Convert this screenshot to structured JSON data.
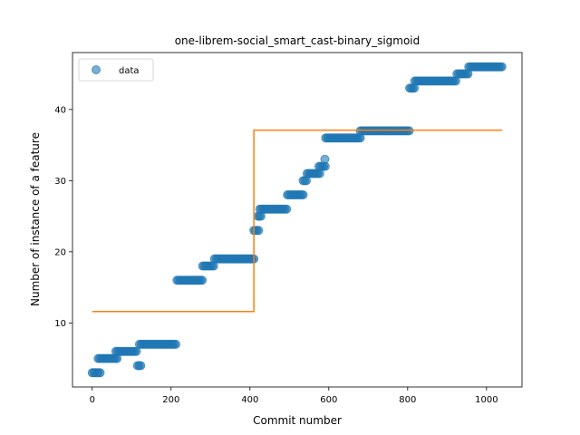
{
  "chart_data": {
    "type": "scatter",
    "title": "one-librem-social_smart_cast-binary_sigmoid",
    "xlabel": "Commit number",
    "ylabel": "Number of instance of a feature",
    "xlim": [
      -50,
      1090
    ],
    "ylim": [
      1,
      48
    ],
    "xticks": [
      0,
      200,
      400,
      600,
      800,
      1000
    ],
    "yticks": [
      10,
      20,
      30,
      40
    ],
    "grid": false,
    "legend": {
      "placement": "top-left",
      "entries": [
        "data"
      ]
    },
    "colors": {
      "scatter": "#1f77b4",
      "fit": "#ff7f0e"
    },
    "series": [
      {
        "name": "data",
        "kind": "scatter",
        "segments": [
          {
            "x0": 0,
            "x1": 20,
            "y": 3
          },
          {
            "x0": 15,
            "x1": 65,
            "y": 5
          },
          {
            "x0": 60,
            "x1": 115,
            "y": 6
          },
          {
            "x0": 115,
            "x1": 125,
            "y": 4
          },
          {
            "x0": 120,
            "x1": 215,
            "y": 7
          },
          {
            "x0": 215,
            "x1": 280,
            "y": 16
          },
          {
            "x0": 280,
            "x1": 310,
            "y": 18
          },
          {
            "x0": 310,
            "x1": 410,
            "y": 19
          },
          {
            "x0": 410,
            "x1": 425,
            "y": 23
          },
          {
            "x0": 420,
            "x1": 428,
            "y": 25
          },
          {
            "x0": 425,
            "x1": 495,
            "y": 26
          },
          {
            "x0": 495,
            "x1": 535,
            "y": 28
          },
          {
            "x0": 535,
            "x1": 545,
            "y": 30
          },
          {
            "x0": 545,
            "x1": 580,
            "y": 31
          },
          {
            "x0": 575,
            "x1": 592,
            "y": 32
          },
          {
            "x0": 590,
            "x1": 590,
            "y": 33
          },
          {
            "x0": 592,
            "x1": 680,
            "y": 36
          },
          {
            "x0": 680,
            "x1": 805,
            "y": 37
          },
          {
            "x0": 805,
            "x1": 820,
            "y": 43
          },
          {
            "x0": 818,
            "x1": 925,
            "y": 44
          },
          {
            "x0": 925,
            "x1": 955,
            "y": 45
          },
          {
            "x0": 955,
            "x1": 1040,
            "y": 46
          }
        ]
      },
      {
        "kind": "line",
        "x": [
          0,
          410,
          410,
          1040
        ],
        "y": [
          11.6,
          11.6,
          37.1,
          37.1
        ]
      }
    ]
  }
}
